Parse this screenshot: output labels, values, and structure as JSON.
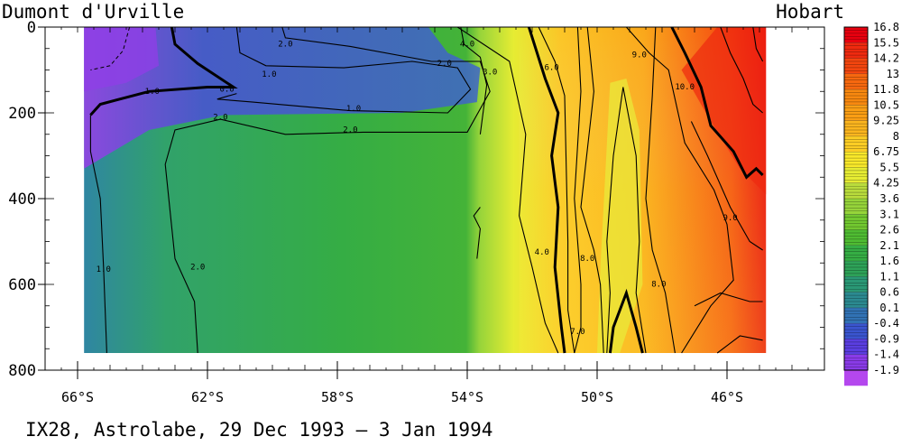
{
  "chart_data": {
    "type": "heatmap",
    "title": "IX28, Astrolabe, 29 Dec 1993 – 3 Jan 1994",
    "left_label": "Dumont d'Urville",
    "right_label": "Hobart",
    "x_ticks": [
      "66°S",
      "62°S",
      "58°S",
      "54°S",
      "50°S",
      "46°S"
    ],
    "x_tick_values": [
      66,
      62,
      58,
      54,
      50,
      46
    ],
    "xlim": [
      67,
      43
    ],
    "y_ticks": [
      "0",
      "200",
      "400",
      "600",
      "800"
    ],
    "y_tick_values": [
      0,
      200,
      400,
      600,
      800
    ],
    "ylim": [
      0,
      800
    ],
    "data_extent": {
      "lat": [
        65.8,
        44.8
      ],
      "depth": [
        0,
        760
      ]
    },
    "colorbar_labels": [
      "16.8",
      "15.5",
      "14.2",
      "13",
      "11.8",
      "10.5",
      "9.25",
      "8",
      "6.75",
      "5.5",
      "4.25",
      "3.6",
      "3.1",
      "2.6",
      "2.1",
      "1.6",
      "1.1",
      "0.6",
      "0.1",
      "-0.4",
      "-0.9",
      "-1.4",
      "-1.9"
    ],
    "colorbar_colors": [
      "#e8000f",
      "#ef2a0f",
      "#f4460f",
      "#f6680f",
      "#f8880f",
      "#fa9e14",
      "#fbb51e",
      "#fccd24",
      "#f9e82a",
      "#e6ec33",
      "#b9dc3c",
      "#96d43a",
      "#72c830",
      "#4fbc32",
      "#35ad44",
      "#2ea258",
      "#2a9875",
      "#2b8a91",
      "#3172b4",
      "#3a55cf",
      "#5a3ee0",
      "#8a3be8",
      "#b447ee"
    ],
    "contour_labels": [
      {
        "text": "0.0",
        "lat": 61.4,
        "depth": 145
      },
      {
        "text": "1.0",
        "lat": 60.1,
        "depth": 110
      },
      {
        "text": "1.0",
        "lat": 63.7,
        "depth": 150
      },
      {
        "text": "1.0",
        "lat": 57.5,
        "depth": 190
      },
      {
        "text": "1.0",
        "lat": 65.2,
        "depth": 565
      },
      {
        "text": "2.0",
        "lat": 59.6,
        "depth": 40
      },
      {
        "text": "2.0",
        "lat": 54.7,
        "depth": 85
      },
      {
        "text": "2.0",
        "lat": 61.6,
        "depth": 210
      },
      {
        "text": "2.0",
        "lat": 57.6,
        "depth": 240
      },
      {
        "text": "2.0",
        "lat": 62.3,
        "depth": 560
      },
      {
        "text": "3.0",
        "lat": 53.3,
        "depth": 105
      },
      {
        "text": "4.0",
        "lat": 54.0,
        "depth": 40
      },
      {
        "text": "4.0",
        "lat": 51.7,
        "depth": 525
      },
      {
        "text": "6.0",
        "lat": 51.4,
        "depth": 95
      },
      {
        "text": "7.0",
        "lat": 50.6,
        "depth": 710
      },
      {
        "text": "8.0",
        "lat": 50.3,
        "depth": 540
      },
      {
        "text": "8.0",
        "lat": 48.1,
        "depth": 600
      },
      {
        "text": "9.0",
        "lat": 48.7,
        "depth": 65
      },
      {
        "text": "9.0",
        "lat": 45.9,
        "depth": 445
      },
      {
        "text": "10.0",
        "lat": 47.3,
        "depth": 140
      }
    ]
  }
}
